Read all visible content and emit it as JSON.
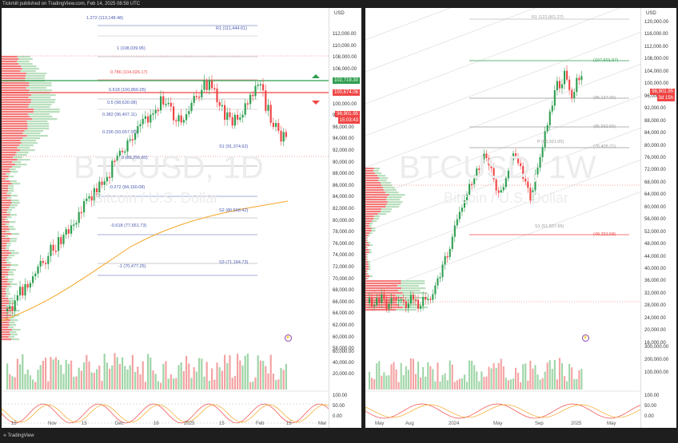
{
  "header": {
    "publisher": "Tickmill published on TradingView.com, Feb 14, 2025 08:58 UTC"
  },
  "footer": {
    "logo": "TradingView"
  },
  "colors": {
    "up": "#2e9e4f",
    "down": "#f04646",
    "volprofile": "#f38f8f",
    "ma": "#f5a623",
    "bg": "#ffffff"
  },
  "left_chart": {
    "symbol": "BTCUSD, 1D",
    "name": "Bitcoin / U.S. Dollar",
    "currency": "USD",
    "y_ticks": [
      "112,000.00",
      "110,000.00",
      "108,000.00",
      "106,000.00",
      "104,000.00",
      "102,000.00",
      "100,000.00",
      "98,000.00",
      "96,000.00",
      "94,000.00",
      "92,000.00",
      "90,000.00",
      "88,000.00",
      "86,000.00",
      "84,000.00",
      "82,000.00",
      "80,000.00",
      "78,000.00",
      "76,000.00",
      "74,000.00",
      "72,000.00",
      "70,000.00",
      "68,000.00",
      "66,000.00",
      "64,000.00",
      "62,000.00",
      "60,000.00",
      "58,000.00"
    ],
    "vol_ticks": [
      "60,000.00",
      "40,000.00",
      "20,000.00"
    ],
    "osc_ticks": [
      "100.00",
      "50.00",
      "0.00"
    ],
    "x_labels": [
      "15",
      "Nov",
      "15",
      "Dec",
      "16",
      "2025",
      "15",
      "Feb",
      "15",
      "Mar"
    ],
    "price_tags": [
      {
        "text": "102,719.30",
        "color": "#2e9e4f"
      },
      {
        "text": "100,674.06",
        "color": "#f04646"
      },
      {
        "text": "98,901.95",
        "color": "#f04646"
      },
      {
        "text": "15:03:43",
        "color": "#f04646"
      }
    ],
    "levels": [
      "1.272 (113,148.48)",
      "R1 (111,444.61)",
      "1 (108,039.95)",
      "0.786 (104,026.17)",
      "0.618 (100,856.05)",
      "0.5 (98,630.08)",
      "0.382 (96,407.11)",
      "0.236 (93,657.00)",
      "S1 (91,374.62)",
      "0 (89,256.60)",
      "-0.272 (84,150.08)",
      "S2 (80,568.42)",
      "-0.618 (77,651.73)",
      "S3 (71,184.73)",
      "-1 (70,477.25)"
    ]
  },
  "right_chart": {
    "symbol": "BTCUSD, 1W",
    "name": "Bitcoin / U.S. Dollar",
    "currency": "USD",
    "y_ticks": [
      "120,000.00",
      "116,000.00",
      "112,000.00",
      "108,000.00",
      "104,000.00",
      "100,000.00",
      "96,000.00",
      "92,000.00",
      "88,000.00",
      "84,000.00",
      "80,000.00",
      "76,000.00",
      "72,000.00",
      "68,000.00",
      "64,000.00",
      "60,000.00",
      "56,000.00",
      "52,000.00",
      "48,000.00",
      "44,000.00",
      "40,000.00",
      "36,000.00",
      "32,000.00",
      "28,000.00",
      "24,000.00",
      "20,000.00",
      "16,000.00"
    ],
    "vol_ticks": [
      "300,000.00",
      "200,000.00",
      "100,000.00"
    ],
    "osc_ticks": [
      "100.00",
      "50.00",
      "0.00"
    ],
    "x_labels": [
      "May",
      "Aug",
      "2024",
      "May",
      "Sep",
      "2025",
      "May"
    ],
    "price_tags": [
      {
        "text": "98,901.95",
        "color": "#f04646"
      },
      {
        "text": "3d 15h",
        "color": "#f04646"
      }
    ],
    "levels": [
      "R1 (121,661.27)",
      "(107,601.57)",
      "(95,137.05)",
      "(85,592.56)",
      "P (80,921.05)",
      "(76,405.21)",
      "S1 (51,837.65)",
      "(49,331.58)"
    ]
  }
}
